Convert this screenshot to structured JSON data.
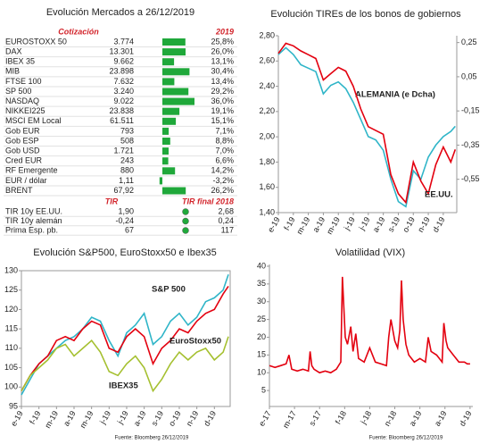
{
  "table": {
    "title": "Evolución Mercados a 26/12/2019",
    "header": [
      "Cotización",
      "2019"
    ],
    "bar_color": "#1fa83a",
    "rows": [
      {
        "name": "EUROSTOXX 50",
        "price": "3.774",
        "change": 25.8,
        "change_label": "25,8%"
      },
      {
        "name": "DAX",
        "price": "13.301",
        "change": 26.0,
        "change_label": "26,0%"
      },
      {
        "name": "IBEX 35",
        "price": "9.662",
        "change": 13.1,
        "change_label": "13,1%"
      },
      {
        "name": "MIB",
        "price": "23.898",
        "change": 30.4,
        "change_label": "30,4%"
      },
      {
        "name": "FTSE 100",
        "price": "7.632",
        "change": 13.4,
        "change_label": "13,4%"
      },
      {
        "name": "SP 500",
        "price": "3.240",
        "change": 29.2,
        "change_label": "29,2%"
      },
      {
        "name": "NASDAQ",
        "price": "9.022",
        "change": 36.0,
        "change_label": "36,0%"
      },
      {
        "name": "NIKKEI225",
        "price": "23.838",
        "change": 19.1,
        "change_label": "19,1%"
      },
      {
        "name": "MSCI EM Local",
        "price": "61.511",
        "change": 15.1,
        "change_label": "15,1%"
      },
      {
        "name": "Gob EUR",
        "price": "793",
        "change": 7.1,
        "change_label": "7,1%"
      },
      {
        "name": "Gob ESP",
        "price": "508",
        "change": 8.8,
        "change_label": "8,8%"
      },
      {
        "name": "Gob USD",
        "price": "1.721",
        "change": 7.0,
        "change_label": "7,0%"
      },
      {
        "name": "Cred EUR",
        "price": "243",
        "change": 6.6,
        "change_label": "6,6%"
      },
      {
        "name": "RF Emergente",
        "price": "880",
        "change": 14.2,
        "change_label": "14,2%"
      },
      {
        "name": "EUR / dólar",
        "price": "1,11",
        "change": -3.2,
        "change_label": "-3,2%"
      },
      {
        "name": "BRENT",
        "price": "67,92",
        "change": 26.2,
        "change_label": "26,2%"
      }
    ],
    "tir_header": [
      "TIR",
      "TIR final 2018"
    ],
    "tir_rows": [
      {
        "name": "TIR 10y EE.UU.",
        "current": "1,90",
        "final_2018": "2,68"
      },
      {
        "name": "TIR 10y alemán",
        "current": "-0,24",
        "final_2018": "0,24"
      },
      {
        "name": "Prima Esp. pb.",
        "current": "67",
        "final_2018": "117"
      }
    ]
  },
  "chart_data": [
    {
      "type": "line",
      "title": "Evolución TIREs de los bonos de gobiernos",
      "x": [
        0,
        0.5,
        1,
        1.5,
        2,
        2.5,
        3,
        3.5,
        4,
        4.5,
        5,
        5.5,
        6,
        6.5,
        7,
        7.5,
        8,
        8.5,
        9,
        9.5,
        10,
        10.5,
        11,
        11.5,
        11.8
      ],
      "xlim": [
        0,
        11.9
      ],
      "xticks": [
        {
          "value": 0,
          "label": "e-19"
        },
        {
          "value": 1,
          "label": "f-19"
        },
        {
          "value": 2,
          "label": "m-19"
        },
        {
          "value": 3,
          "label": "a-19"
        },
        {
          "value": 4,
          "label": "m-19"
        },
        {
          "value": 5,
          "label": "j-19"
        },
        {
          "value": 6,
          "label": "j-19"
        },
        {
          "value": 7,
          "label": "a-19"
        },
        {
          "value": 8,
          "label": "s-19"
        },
        {
          "value": 9,
          "label": "o-19"
        },
        {
          "value": 10,
          "label": "n-19"
        },
        {
          "value": 11,
          "label": "d-19"
        }
      ],
      "ylim": [
        1.4,
        2.8
      ],
      "yticks": [
        {
          "value": 2.8,
          "label": "2,80"
        },
        {
          "value": 2.6,
          "label": "2,60"
        },
        {
          "value": 2.4,
          "label": "2,40"
        },
        {
          "value": 2.2,
          "label": "2,20"
        },
        {
          "value": 2.0,
          "label": "2,00"
        },
        {
          "value": 1.8,
          "label": "1,80"
        },
        {
          "value": 1.6,
          "label": "1,60"
        },
        {
          "value": 1.4,
          "label": "1,40"
        }
      ],
      "y2lim": [
        -0.745,
        0.29
      ],
      "y2ticks": [
        {
          "value": 0.25,
          "label": "0,25"
        },
        {
          "value": 0.05,
          "label": "0,05"
        },
        {
          "value": -0.15,
          "label": "-0,15"
        },
        {
          "value": -0.35,
          "label": "-0,35"
        },
        {
          "value": -0.55,
          "label": "-0,55"
        }
      ],
      "series": [
        {
          "name": "ALEMANIA (e Dcha)",
          "color": "#2fb5c8",
          "axis": "y2",
          "values": [
            0.18,
            0.22,
            0.18,
            0.12,
            0.1,
            0.08,
            -0.05,
            0.0,
            0.02,
            -0.02,
            -0.1,
            -0.2,
            -0.3,
            -0.32,
            -0.38,
            -0.55,
            -0.68,
            -0.71,
            -0.5,
            -0.55,
            -0.42,
            -0.35,
            -0.3,
            -0.27,
            -0.24
          ]
        },
        {
          "name": "EE.UU.",
          "color": "#e3000f",
          "values": [
            2.66,
            2.74,
            2.72,
            2.68,
            2.65,
            2.62,
            2.45,
            2.5,
            2.55,
            2.52,
            2.4,
            2.22,
            2.08,
            2.05,
            2.02,
            1.7,
            1.55,
            1.48,
            1.8,
            1.65,
            1.55,
            1.78,
            1.92,
            1.8,
            1.9
          ]
        }
      ]
    },
    {
      "type": "line",
      "title": "Evolución S&P500, EuroStoxx50 e Ibex35",
      "source": "Fuente: Bloomberg 26/12/2019",
      "x": [
        0,
        0.5,
        1,
        1.5,
        2,
        2.5,
        3,
        3.5,
        4,
        4.5,
        5,
        5.5,
        6,
        6.5,
        7,
        7.5,
        8,
        8.5,
        9,
        9.5,
        10,
        10.5,
        11,
        11.5,
        11.8
      ],
      "xlim": [
        0,
        11.9
      ],
      "xticks": [
        {
          "value": 0,
          "label": "e-19"
        },
        {
          "value": 1,
          "label": "f-19"
        },
        {
          "value": 2,
          "label": "m-19"
        },
        {
          "value": 3,
          "label": "a-19"
        },
        {
          "value": 4,
          "label": "m-19"
        },
        {
          "value": 5,
          "label": "j-19"
        },
        {
          "value": 6,
          "label": "j-19"
        },
        {
          "value": 7,
          "label": "a-19"
        },
        {
          "value": 8,
          "label": "s-19"
        },
        {
          "value": 9,
          "label": "o-19"
        },
        {
          "value": 10,
          "label": "n-19"
        },
        {
          "value": 11,
          "label": "d-19"
        }
      ],
      "ylim": [
        95,
        130
      ],
      "yticks": [
        130,
        125,
        120,
        115,
        110,
        105,
        100,
        95
      ],
      "series": [
        {
          "name": "S&P 500",
          "color": "#2fb5c8",
          "values": [
            98,
            102,
            106,
            108,
            110,
            112,
            113,
            115,
            118,
            117,
            112,
            108,
            114,
            116,
            119,
            111,
            113,
            117,
            119,
            116,
            118,
            122,
            123,
            125,
            129
          ]
        },
        {
          "name": "EuroStoxx50",
          "color": "#e3000f",
          "values": [
            99,
            103,
            106,
            108,
            112,
            113,
            112,
            115,
            117,
            116,
            110,
            109,
            113,
            115,
            113,
            106,
            110,
            112,
            115,
            114,
            117,
            119,
            120,
            124,
            126
          ]
        },
        {
          "name": "IBEX35",
          "color": "#a5c030",
          "values": [
            99,
            103,
            105,
            107,
            110,
            111,
            108,
            110,
            112,
            109,
            104,
            103,
            106,
            108,
            105,
            99,
            102,
            106,
            109,
            107,
            109,
            110,
            107,
            109,
            113
          ]
        }
      ]
    },
    {
      "type": "line",
      "title": "Volatilidad (VIX)",
      "source": "Fuente: Bloomberg 26/12/2019",
      "x": [
        0,
        1,
        2,
        3,
        3.5,
        4,
        5,
        6,
        7,
        7.3,
        7.6,
        8,
        9,
        10,
        11,
        12,
        12.8,
        13.1,
        13.3,
        13.6,
        14,
        14.6,
        15,
        15.5,
        16,
        17,
        18,
        19,
        20,
        21,
        21.4,
        21.8,
        22.5,
        23,
        23.4,
        23.7,
        24,
        24.5,
        25,
        26,
        27,
        28,
        28.5,
        29,
        30,
        31,
        31.3,
        31.7,
        32,
        33,
        34,
        35,
        35.5,
        36
      ],
      "xlim": [
        0,
        36.5
      ],
      "xticks": [
        {
          "value": 0,
          "label": "e-17"
        },
        {
          "value": 4.5,
          "label": "m-17"
        },
        {
          "value": 9,
          "label": "s-17"
        },
        {
          "value": 13.5,
          "label": "f-18"
        },
        {
          "value": 18,
          "label": "j-18"
        },
        {
          "value": 22.5,
          "label": "n-18"
        },
        {
          "value": 27,
          "label": "a-19"
        },
        {
          "value": 31.5,
          "label": "a-19"
        },
        {
          "value": 36,
          "label": "d-19"
        }
      ],
      "ylim": [
        0.5,
        40.5
      ],
      "yticks": [
        40,
        35,
        30,
        25,
        20,
        15,
        10,
        5
      ],
      "series": [
        {
          "color": "#e3000f",
          "values": [
            12,
            11.5,
            12,
            12.5,
            15,
            11,
            10.5,
            11,
            10.5,
            16,
            12,
            11,
            10,
            10.5,
            10,
            11,
            13,
            37,
            30,
            20,
            18,
            23,
            16,
            21,
            14,
            13,
            17,
            13,
            12.5,
            12,
            20,
            25,
            19,
            17,
            22,
            36,
            25,
            18,
            15,
            13,
            14,
            13,
            20,
            16,
            15,
            13,
            24,
            19,
            17,
            15,
            13,
            13,
            12.5,
            12.5
          ]
        }
      ]
    }
  ]
}
